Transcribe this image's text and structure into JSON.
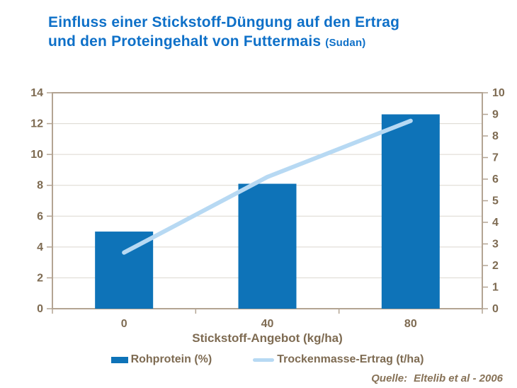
{
  "title": {
    "line1": "Einfluss einer Stickstoff-Düngung auf den Ertrag",
    "line2": "und den Proteingehalt von Futtermais",
    "suffix": "(Sudan)"
  },
  "colors": {
    "title_blue": "#0e70c8",
    "bar_blue": "#0e73b8",
    "line_light_blue": "#b7d9f3",
    "axis_frame": "#b3a493",
    "gridline": "#dcd7cf",
    "axis_text": "#7e6b52",
    "source_text": "#877257"
  },
  "chart_data": {
    "type": "bar",
    "subtype": "bar-and-line-combo",
    "categories": [
      "0",
      "40",
      "80"
    ],
    "series": [
      {
        "name": "Rohprotein (%)",
        "kind": "bar",
        "axis": "left",
        "values": [
          5.0,
          8.1,
          12.6
        ],
        "color": "#0e73b8"
      },
      {
        "name": "Trockenmasse-Ertrag (t/ha)",
        "kind": "line",
        "axis": "right",
        "values": [
          2.6,
          6.1,
          8.7
        ],
        "color": "#b7d9f3"
      }
    ],
    "title": "Einfluss einer Stickstoff-Düngung auf den Ertrag und den Proteingehalt von Futtermais (Sudan)",
    "xlabel": "Stickstoff-Angebot (kg/ha)",
    "left_axis": {
      "min": 0,
      "max": 14,
      "step": 2,
      "ticks": [
        "0",
        "2",
        "4",
        "6",
        "8",
        "10",
        "12",
        "14"
      ]
    },
    "right_axis": {
      "min": 0,
      "max": 10,
      "step": 1,
      "ticks": [
        "0",
        "1",
        "2",
        "3",
        "4",
        "5",
        "6",
        "7",
        "8",
        "9",
        "10"
      ]
    },
    "grid": true,
    "legend_position": "bottom"
  },
  "legend": {
    "items": [
      {
        "label": "Rohprotein (%)",
        "swatch": "bar"
      },
      {
        "label": "Trockenmasse-Ertrag (t/ha)",
        "swatch": "line"
      }
    ]
  },
  "source": {
    "label": "Quelle:",
    "value": "Eltelib et al - 2006"
  }
}
